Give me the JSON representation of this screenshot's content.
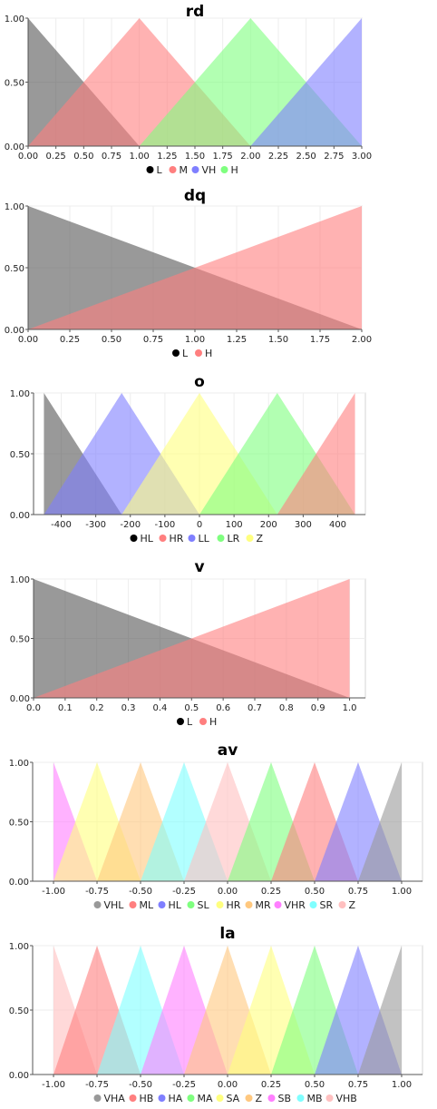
{
  "chart_data": [
    {
      "type": "area",
      "title": "rd",
      "xlim": [
        0,
        3
      ],
      "ylim": [
        0,
        1
      ],
      "xticks": [
        "0.00",
        "0.25",
        "0.50",
        "0.75",
        "1.00",
        "1.25",
        "1.50",
        "1.75",
        "2.00",
        "2.25",
        "2.50",
        "2.75",
        "3.00"
      ],
      "yticks": [
        "0.00",
        "0.50",
        "1.00"
      ],
      "legend_order": [
        "L",
        "M",
        "VH",
        "H"
      ],
      "series": [
        {
          "name": "L",
          "color": "#555555",
          "x": [
            0,
            0,
            1
          ],
          "y": [
            0,
            1,
            0
          ]
        },
        {
          "name": "M",
          "color": "#ff7f7f",
          "x": [
            0,
            1,
            2
          ],
          "y": [
            0,
            1,
            0
          ]
        },
        {
          "name": "H",
          "color": "#7fff7f",
          "x": [
            1,
            2,
            3
          ],
          "y": [
            0,
            1,
            0
          ]
        },
        {
          "name": "VH",
          "color": "#7f7fff",
          "x": [
            2,
            3,
            3
          ],
          "y": [
            0,
            1,
            0
          ]
        }
      ]
    },
    {
      "type": "area",
      "title": "dq",
      "xlim": [
        0,
        2
      ],
      "ylim": [
        0,
        1
      ],
      "xticks": [
        "0.00",
        "0.25",
        "0.50",
        "0.75",
        "1.00",
        "1.25",
        "1.50",
        "1.75",
        "2.00"
      ],
      "yticks": [
        "0.00",
        "0.50",
        "1.00"
      ],
      "legend_order": [
        "L",
        "H"
      ],
      "series": [
        {
          "name": "L",
          "color": "#555555",
          "x": [
            0,
            0,
            2
          ],
          "y": [
            0,
            1,
            0
          ]
        },
        {
          "name": "H",
          "color": "#ff7f7f",
          "x": [
            0,
            2,
            2
          ],
          "y": [
            0,
            1,
            0
          ]
        }
      ]
    },
    {
      "type": "area",
      "title": "o",
      "xlim": [
        -480,
        480
      ],
      "ylim": [
        0,
        1
      ],
      "xticks": [
        "-400",
        "-300",
        "-200",
        "-100",
        "0",
        "100",
        "200",
        "300",
        "400"
      ],
      "yticks": [
        "0.00",
        "0.50",
        "1.00"
      ],
      "legend_order": [
        "HL",
        "HR",
        "LL",
        "LR",
        "Z"
      ],
      "series": [
        {
          "name": "HL",
          "color": "#555555",
          "x": [
            -450,
            -450,
            -225
          ],
          "y": [
            0,
            1,
            0
          ]
        },
        {
          "name": "LL",
          "color": "#7f7fff",
          "x": [
            -450,
            -225,
            0
          ],
          "y": [
            0,
            1,
            0
          ]
        },
        {
          "name": "Z",
          "color": "#ffff7f",
          "x": [
            -225,
            0,
            225
          ],
          "y": [
            0,
            1,
            0
          ]
        },
        {
          "name": "LR",
          "color": "#7fff7f",
          "x": [
            0,
            225,
            450
          ],
          "y": [
            0,
            1,
            0
          ]
        },
        {
          "name": "HR",
          "color": "#ff7f7f",
          "x": [
            225,
            450,
            450
          ],
          "y": [
            0,
            1,
            0
          ]
        }
      ]
    },
    {
      "type": "area",
      "title": "v",
      "xlim": [
        0,
        1.05
      ],
      "ylim": [
        0,
        1
      ],
      "xticks": [
        "0.0",
        "0.1",
        "0.2",
        "0.3",
        "0.4",
        "0.5",
        "0.6",
        "0.7",
        "0.8",
        "0.9",
        "1.0"
      ],
      "yticks": [
        "0.00",
        "0.50",
        "1.00"
      ],
      "legend_order": [
        "L",
        "H"
      ],
      "series": [
        {
          "name": "L",
          "color": "#555555",
          "x": [
            0,
            0,
            1
          ],
          "y": [
            0,
            1,
            0
          ]
        },
        {
          "name": "H",
          "color": "#ff7f7f",
          "x": [
            0,
            1,
            1
          ],
          "y": [
            0,
            1,
            0
          ]
        }
      ]
    },
    {
      "type": "area",
      "title": "av",
      "xlim": [
        -1.12,
        1.12
      ],
      "ylim": [
        0,
        1
      ],
      "xticks": [
        "-1.00",
        "-0.75",
        "-0.50",
        "-0.25",
        "0.00",
        "0.25",
        "0.50",
        "0.75",
        "1.00"
      ],
      "yticks": [
        "0.00",
        "0.50",
        "1.00"
      ],
      "legend_order": [
        "VHL",
        "ML",
        "HL",
        "SL",
        "HR",
        "MR",
        "VHR",
        "SR",
        "Z"
      ],
      "series": [
        {
          "name": "VHR",
          "color": "#ff7fff",
          "x": [
            -1,
            -1,
            -0.75
          ],
          "y": [
            0,
            1,
            0
          ]
        },
        {
          "name": "HR",
          "color": "#ffff7f",
          "x": [
            -1,
            -0.75,
            -0.5
          ],
          "y": [
            0,
            1,
            0
          ]
        },
        {
          "name": "MR",
          "color": "#ffc87f",
          "x": [
            -0.75,
            -0.5,
            -0.25
          ],
          "y": [
            0,
            1,
            0
          ]
        },
        {
          "name": "SR",
          "color": "#7fffff",
          "x": [
            -0.5,
            -0.25,
            0
          ],
          "y": [
            0,
            1,
            0
          ]
        },
        {
          "name": "Z",
          "color": "#ffc0c0",
          "x": [
            -0.25,
            0,
            0.25
          ],
          "y": [
            0,
            1,
            0
          ]
        },
        {
          "name": "SL",
          "color": "#7fff7f",
          "x": [
            0,
            0.25,
            0.5
          ],
          "y": [
            0,
            1,
            0
          ]
        },
        {
          "name": "ML",
          "color": "#ff7f7f",
          "x": [
            0.25,
            0.5,
            0.75
          ],
          "y": [
            0,
            1,
            0
          ]
        },
        {
          "name": "HL",
          "color": "#7f7fff",
          "x": [
            0.5,
            0.75,
            1
          ],
          "y": [
            0,
            1,
            0
          ]
        },
        {
          "name": "VHL",
          "color": "#999999",
          "x": [
            0.75,
            1,
            1
          ],
          "y": [
            0,
            1,
            0
          ]
        }
      ]
    },
    {
      "type": "area",
      "title": "la",
      "xlim": [
        -1.12,
        1.12
      ],
      "ylim": [
        0,
        1
      ],
      "xticks": [
        "-1.00",
        "-0.75",
        "-0.50",
        "-0.25",
        "0.00",
        "0.25",
        "0.50",
        "0.75",
        "1.00"
      ],
      "yticks": [
        "0.00",
        "0.50",
        "1.00"
      ],
      "legend_order": [
        "VHA",
        "HB",
        "HA",
        "MA",
        "SA",
        "Z",
        "SB",
        "MB",
        "VHB"
      ],
      "series": [
        {
          "name": "VHB",
          "color": "#ffc0c0",
          "x": [
            -1,
            -1,
            -0.75
          ],
          "y": [
            0,
            1,
            0
          ]
        },
        {
          "name": "HB",
          "color": "#ff7f7f",
          "x": [
            -1,
            -0.75,
            -0.5
          ],
          "y": [
            0,
            1,
            0
          ]
        },
        {
          "name": "MB",
          "color": "#7fffff",
          "x": [
            -0.75,
            -0.5,
            -0.25
          ],
          "y": [
            0,
            1,
            0
          ]
        },
        {
          "name": "SB",
          "color": "#ff7fff",
          "x": [
            -0.5,
            -0.25,
            0
          ],
          "y": [
            0,
            1,
            0
          ]
        },
        {
          "name": "Z",
          "color": "#ffc87f",
          "x": [
            -0.25,
            0,
            0.25
          ],
          "y": [
            0,
            1,
            0
          ]
        },
        {
          "name": "SA",
          "color": "#ffff7f",
          "x": [
            0,
            0.25,
            0.5
          ],
          "y": [
            0,
            1,
            0
          ]
        },
        {
          "name": "MA",
          "color": "#7fff7f",
          "x": [
            0.25,
            0.5,
            0.75
          ],
          "y": [
            0,
            1,
            0
          ]
        },
        {
          "name": "HA",
          "color": "#7f7fff",
          "x": [
            0.5,
            0.75,
            1
          ],
          "y": [
            0,
            1,
            0
          ]
        },
        {
          "name": "VHA",
          "color": "#999999",
          "x": [
            0.75,
            1,
            1
          ],
          "y": [
            0,
            1,
            0
          ]
        }
      ]
    }
  ]
}
